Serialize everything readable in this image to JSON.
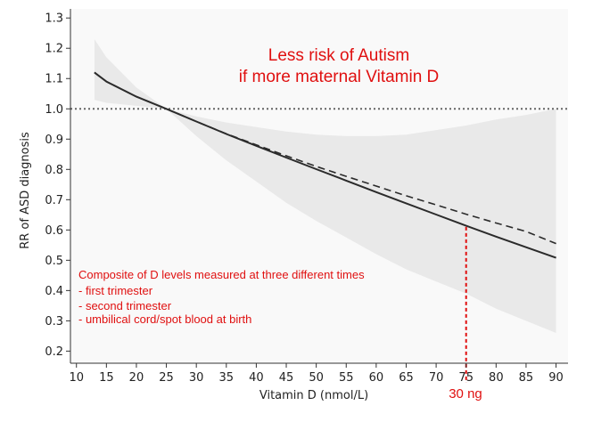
{
  "chart_data": {
    "type": "line",
    "xlabel": "Vitamin D (nmol/L)",
    "ylabel": "RR of ASD diagnosis",
    "xlim": [
      9,
      92
    ],
    "ylim": [
      0.16,
      1.33
    ],
    "x_ticks": [
      10,
      15,
      20,
      25,
      30,
      35,
      40,
      45,
      50,
      55,
      60,
      65,
      70,
      75,
      80,
      85,
      90
    ],
    "y_ticks": [
      0.2,
      0.3,
      0.4,
      0.5,
      0.6,
      0.7,
      0.8,
      0.9,
      1.0,
      1.1,
      1.2,
      1.3
    ],
    "y_tick_labels": [
      "0.2",
      "0.3",
      "0.4",
      "0.5",
      "0.6",
      "0.7",
      "0.8",
      "0.9",
      "1.0",
      "1.1",
      "1.2",
      "1.3"
    ],
    "reference_line": {
      "y": 1.0,
      "style": "dotted"
    },
    "series": [
      {
        "style": "solid",
        "x": [
          13,
          15,
          20,
          25,
          30,
          35,
          40,
          45,
          50,
          55,
          60,
          65,
          70,
          75,
          80,
          85,
          90
        ],
        "y": [
          1.12,
          1.09,
          1.04,
          1.0,
          0.958,
          0.917,
          0.878,
          0.839,
          0.801,
          0.763,
          0.725,
          0.688,
          0.651,
          0.614,
          0.578,
          0.543,
          0.508
        ]
      },
      {
        "style": "dashed",
        "x": [
          13,
          15,
          20,
          25,
          30,
          35,
          40,
          45,
          50,
          55,
          60,
          65,
          70,
          75,
          80,
          85,
          90
        ],
        "y": [
          1.12,
          1.09,
          1.04,
          1.0,
          0.958,
          0.918,
          0.881,
          0.845,
          0.81,
          0.777,
          0.745,
          0.713,
          0.683,
          0.652,
          0.623,
          0.595,
          0.555
        ]
      }
    ],
    "confidence_band": {
      "x": [
        13,
        15,
        20,
        25,
        30,
        35,
        40,
        45,
        50,
        55,
        60,
        65,
        70,
        75,
        80,
        85,
        90
      ],
      "upper": [
        1.23,
        1.17,
        1.07,
        1.0,
        0.975,
        0.955,
        0.94,
        0.925,
        0.915,
        0.91,
        0.91,
        0.915,
        0.93,
        0.945,
        0.965,
        0.98,
        1.0
      ],
      "lower": [
        1.03,
        1.02,
        1.01,
        1.0,
        0.91,
        0.83,
        0.76,
        0.69,
        0.63,
        0.575,
        0.52,
        0.47,
        0.43,
        0.39,
        0.34,
        0.3,
        0.26
      ]
    },
    "marker": {
      "x": 75,
      "y": 0.61,
      "label": "30 ng",
      "color": "#e01010"
    }
  },
  "annotations": {
    "headline_1": "Less risk of Autism",
    "headline_2": "if more maternal Vitamin D",
    "note_lines": [
      "Composite of D levels measured at three different times",
      "- first trimester",
      "- second trimester",
      "- umbilical cord/spot blood at birth"
    ],
    "marker_label": "30 ng"
  },
  "colors": {
    "line": "#2b2b2b",
    "band": "#e9e9e9",
    "plot_bg": "#f9f9f9",
    "reference": "#666666",
    "accent": "#e01010"
  }
}
